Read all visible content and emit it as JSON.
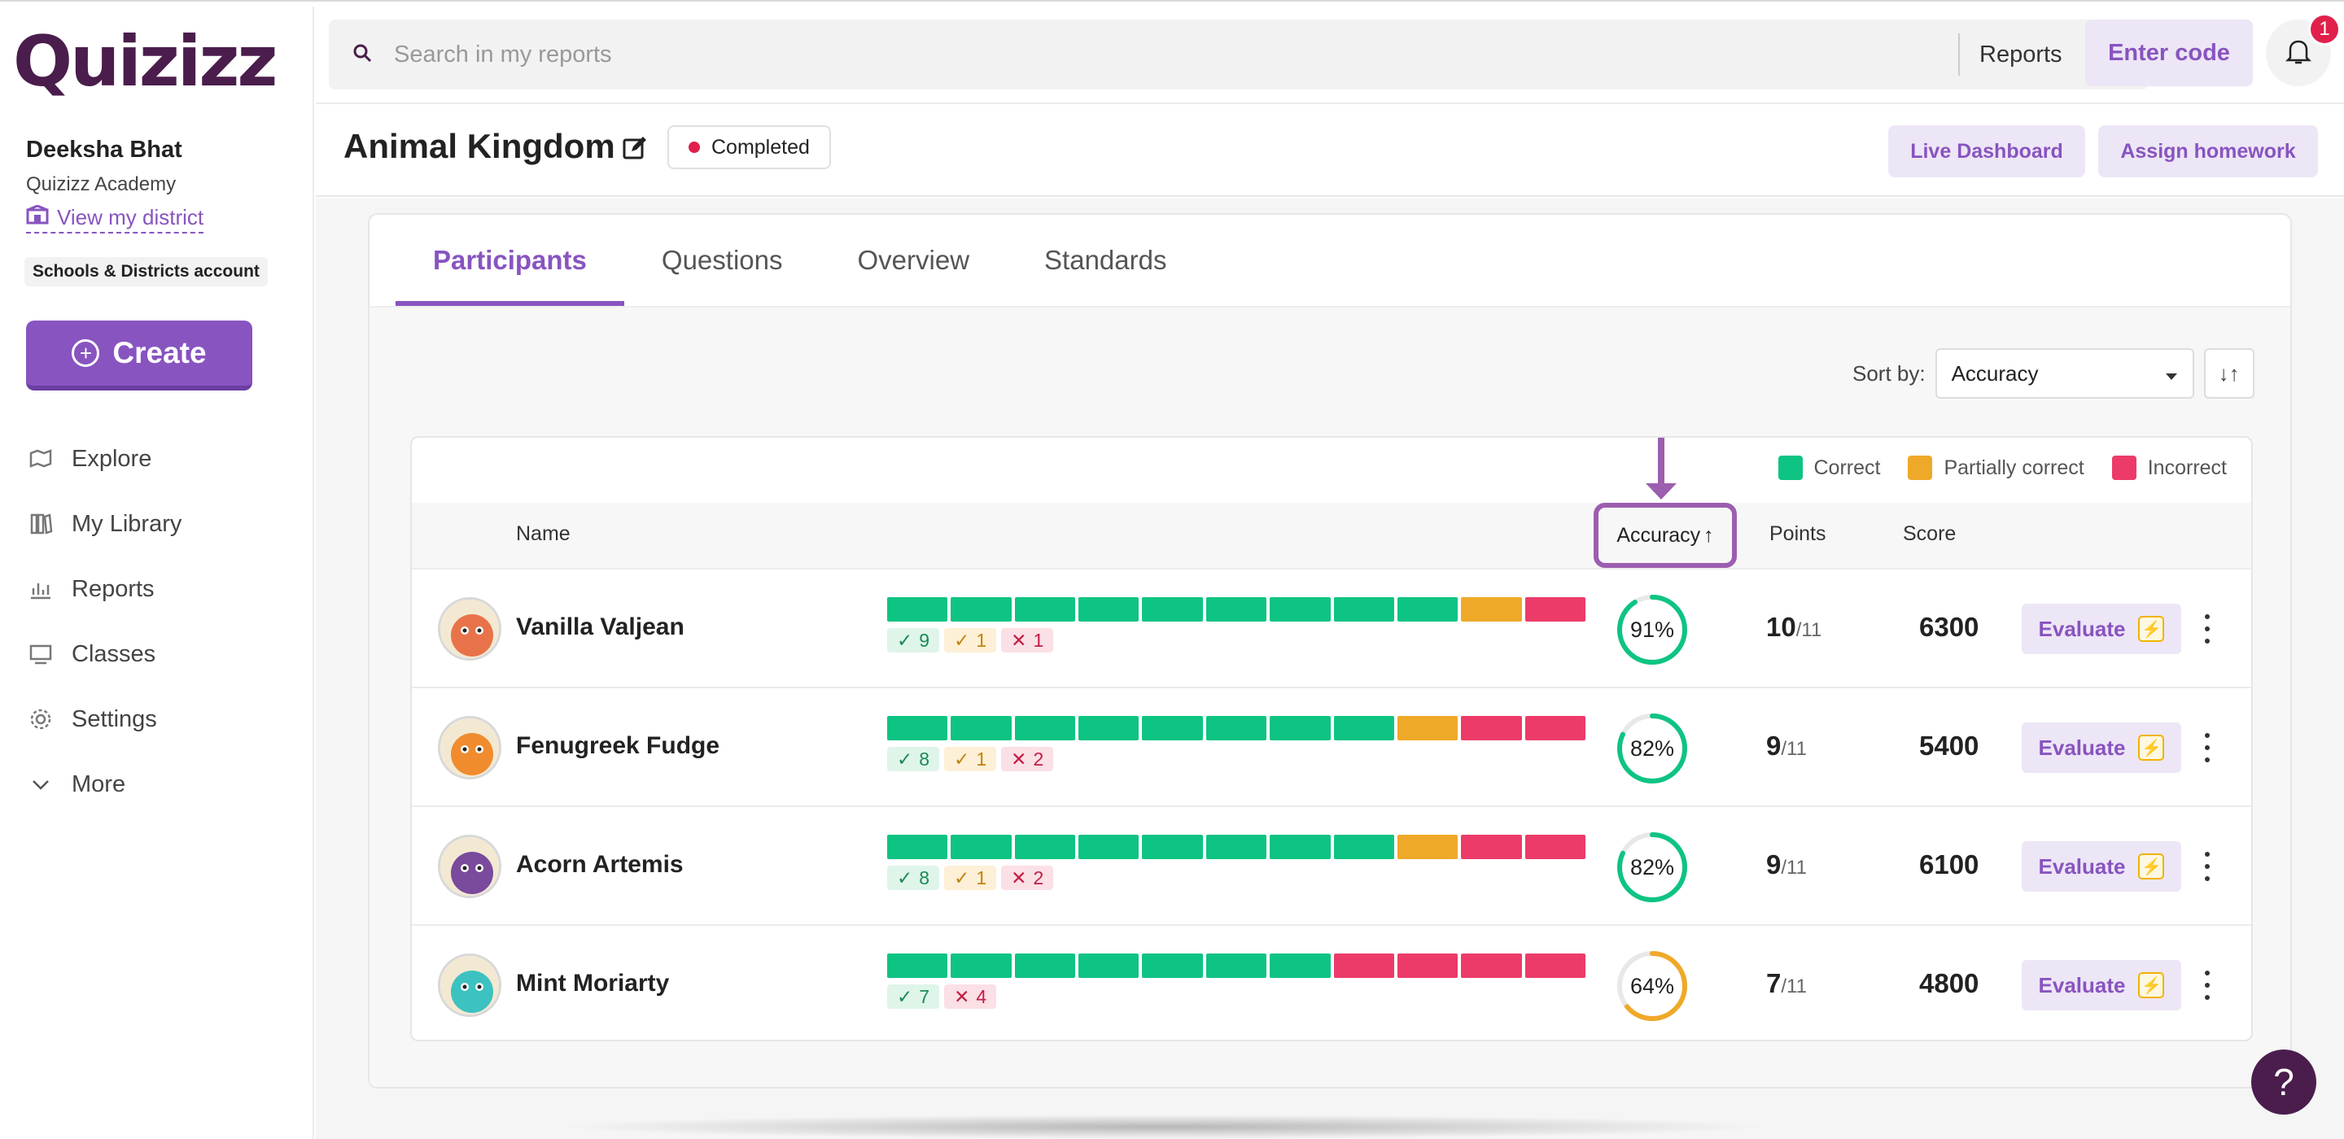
{
  "brand": {
    "logo_text": "Quizizz",
    "accent": "#8854c0",
    "dark": "#4a1d4c"
  },
  "user": {
    "name": "Deeksha Bhat",
    "school": "Quizizz Academy",
    "district_link": "View my district",
    "account_type": "Schools & Districts account"
  },
  "sidebar": {
    "create_label": "Create",
    "items": [
      {
        "label": "Explore",
        "icon": "explore-icon"
      },
      {
        "label": "My Library",
        "icon": "library-icon"
      },
      {
        "label": "Reports",
        "icon": "reports-icon"
      },
      {
        "label": "Classes",
        "icon": "classes-icon"
      },
      {
        "label": "Settings",
        "icon": "settings-icon"
      },
      {
        "label": "More",
        "icon": "chevron-down-icon"
      }
    ]
  },
  "header": {
    "search_placeholder": "Search in my reports",
    "search_scope": "Reports",
    "enter_code": "Enter code",
    "notification_count": "1"
  },
  "report": {
    "title": "Animal Kingdom",
    "status": "Completed",
    "live_dashboard": "Live Dashboard",
    "assign_homework": "Assign homework"
  },
  "tabs": [
    {
      "label": "Participants",
      "active": true
    },
    {
      "label": "Questions",
      "active": false
    },
    {
      "label": "Overview",
      "active": false
    },
    {
      "label": "Standards",
      "active": false
    }
  ],
  "sort": {
    "label": "Sort by:",
    "value": "Accuracy",
    "direction_icon": "↓↑"
  },
  "legend": [
    {
      "label": "Correct",
      "color": "#0ec482"
    },
    {
      "label": "Partially correct",
      "color": "#efa929"
    },
    {
      "label": "Incorrect",
      "color": "#ec3b69"
    }
  ],
  "table": {
    "headers": {
      "name": "Name",
      "accuracy": "Accuracy",
      "accuracy_sort_icon": "↑",
      "points": "Points",
      "score": "Score"
    },
    "evaluate_label": "Evaluate",
    "rows": [
      {
        "name": "Vanilla Valjean",
        "bars": [
          "c",
          "c",
          "c",
          "c",
          "c",
          "c",
          "c",
          "c",
          "c",
          "p",
          "i"
        ],
        "correct": "9",
        "partial": "1",
        "incorrect": "1",
        "accuracy": 91,
        "accuracy_label": "91%",
        "points": "10",
        "points_total": "/11",
        "score": "6300",
        "avatar_color": "#e8734a",
        "ring_color": "#0ec482"
      },
      {
        "name": "Fenugreek Fudge",
        "bars": [
          "c",
          "c",
          "c",
          "c",
          "c",
          "c",
          "c",
          "c",
          "p",
          "i",
          "i"
        ],
        "correct": "8",
        "partial": "1",
        "incorrect": "2",
        "accuracy": 82,
        "accuracy_label": "82%",
        "points": "9",
        "points_total": "/11",
        "score": "5400",
        "avatar_color": "#f08c2e",
        "ring_color": "#0ec482"
      },
      {
        "name": "Acorn Artemis",
        "bars": [
          "c",
          "c",
          "c",
          "c",
          "c",
          "c",
          "c",
          "c",
          "p",
          "i",
          "i"
        ],
        "correct": "8",
        "partial": "1",
        "incorrect": "2",
        "accuracy": 82,
        "accuracy_label": "82%",
        "points": "9",
        "points_total": "/11",
        "score": "6100",
        "avatar_color": "#7a4a9c",
        "ring_color": "#0ec482"
      },
      {
        "name": "Mint Moriarty",
        "bars": [
          "c",
          "c",
          "c",
          "c",
          "c",
          "c",
          "c",
          "i",
          "i",
          "i",
          "i"
        ],
        "correct": "7",
        "partial": "",
        "incorrect": "4",
        "accuracy": 64,
        "accuracy_label": "64%",
        "points": "7",
        "points_total": "/11",
        "score": "4800",
        "avatar_color": "#3cc2c0",
        "ring_color": "#efa929"
      }
    ]
  },
  "help_label": "?"
}
